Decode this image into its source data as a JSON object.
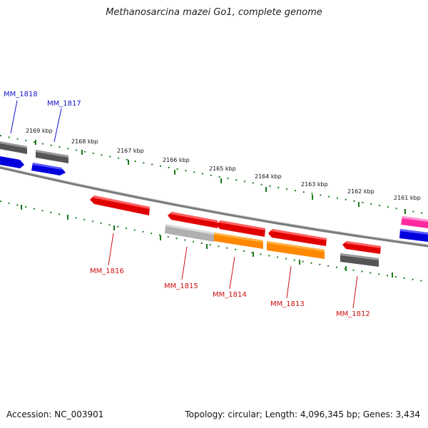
{
  "header": {
    "title": "Methanosarcina mazei Go1, complete genome"
  },
  "footer": {
    "accession": "Accession: NC_003901",
    "info": "Topology: circular; Length: 4,096,345 bp; Genes: 3,434"
  },
  "ruler": {
    "labels": [
      "2169 kbp",
      "2168 kbp",
      "2167 kbp",
      "2166 kbp",
      "2165 kbp",
      "2164 kbp",
      "2163 kbp",
      "2162 kbp",
      "2161 kbp"
    ]
  },
  "genes": {
    "labels": [
      "MM_1818",
      "MM_1817",
      "MM_1816",
      "MM_1815",
      "MM_1814",
      "MM_1813",
      "MM_1812"
    ]
  },
  "colors": {
    "backbone": "#808080",
    "tick": "#1a7a1a",
    "cds_red": "#ee0000",
    "cds_orange": "#ff9900",
    "cds_blue": "#0000ee",
    "cds_gray": "#666666",
    "cds_light": "#c0c0c0",
    "cds_pink": "#ff2aa0"
  }
}
